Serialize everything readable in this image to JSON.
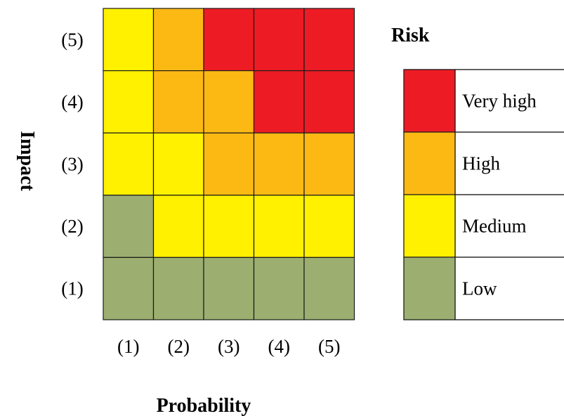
{
  "chart_data": {
    "type": "heatmap",
    "xlabel": "Probability",
    "ylabel": "Impact",
    "x_categories": [
      "(1)",
      "(2)",
      "(3)",
      "(4)",
      "(5)"
    ],
    "y_categories": [
      "(1)",
      "(2)",
      "(3)",
      "(4)",
      "(5)"
    ],
    "grid": [
      [
        "Medium",
        "High",
        "Very high",
        "Very high",
        "Very high"
      ],
      [
        "Medium",
        "High",
        "High",
        "Very high",
        "Very high"
      ],
      [
        "Medium",
        "Medium",
        "High",
        "High",
        "High"
      ],
      [
        "Low",
        "Medium",
        "Medium",
        "Medium",
        "Medium"
      ],
      [
        "Low",
        "Low",
        "Low",
        "Low",
        "Low"
      ]
    ],
    "legend": {
      "title": "Risk",
      "placement": "right",
      "entries": [
        {
          "label": "Very high",
          "color": "#ED1C24"
        },
        {
          "label": "High",
          "color": "#FDB913"
        },
        {
          "label": "Medium",
          "color": "#FFF100"
        },
        {
          "label": "Low",
          "color": "#9CAF71"
        }
      ]
    }
  }
}
